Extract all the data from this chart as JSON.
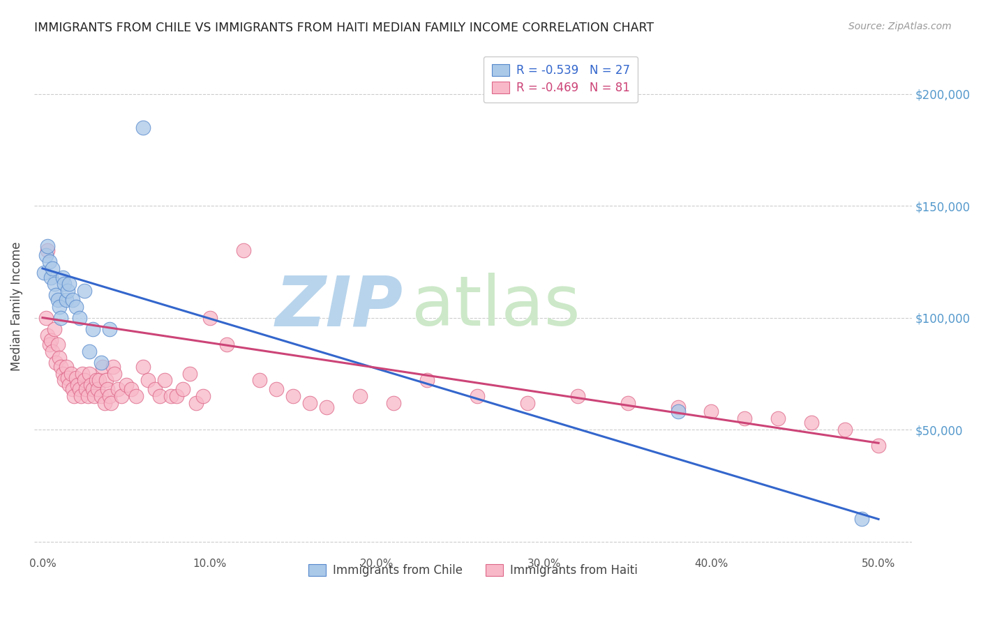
{
  "title": "IMMIGRANTS FROM CHILE VS IMMIGRANTS FROM HAITI MEDIAN FAMILY INCOME CORRELATION CHART",
  "source": "Source: ZipAtlas.com",
  "ylabel": "Median Family Income",
  "xlabel_ticks": [
    "0.0%",
    "10.0%",
    "20.0%",
    "30.0%",
    "40.0%",
    "50.0%"
  ],
  "xlabel_vals": [
    0.0,
    0.1,
    0.2,
    0.3,
    0.4,
    0.5
  ],
  "ytick_vals": [
    0,
    50000,
    100000,
    150000,
    200000
  ],
  "ytick_labels": [
    "",
    "$50,000",
    "$100,000",
    "$150,000",
    "$200,000"
  ],
  "ylim": [
    -5000,
    215000
  ],
  "xlim": [
    -0.005,
    0.52
  ],
  "background_color": "#ffffff",
  "grid_color": "#cccccc",
  "watermark_zip": "ZIP",
  "watermark_atlas": "atlas",
  "watermark_color": "#cde0f0",
  "legend_chile_label": "Immigrants from Chile",
  "legend_haiti_label": "Immigrants from Haiti",
  "R_chile": -0.539,
  "N_chile": 27,
  "R_haiti": -0.469,
  "N_haiti": 81,
  "chile_color": "#aac8e8",
  "chile_edge_color": "#5588cc",
  "chile_line_color": "#3366cc",
  "haiti_color": "#f8b8c8",
  "haiti_edge_color": "#dd6688",
  "haiti_line_color": "#cc4477",
  "chile_x": [
    0.001,
    0.002,
    0.003,
    0.004,
    0.005,
    0.006,
    0.007,
    0.008,
    0.009,
    0.01,
    0.011,
    0.012,
    0.013,
    0.014,
    0.015,
    0.016,
    0.018,
    0.02,
    0.022,
    0.025,
    0.028,
    0.03,
    0.035,
    0.04,
    0.06,
    0.38,
    0.49
  ],
  "chile_y": [
    120000,
    128000,
    132000,
    125000,
    118000,
    122000,
    115000,
    110000,
    108000,
    105000,
    100000,
    118000,
    115000,
    108000,
    112000,
    115000,
    108000,
    105000,
    100000,
    112000,
    85000,
    95000,
    80000,
    95000,
    185000,
    58000,
    10000
  ],
  "haiti_x": [
    0.002,
    0.003,
    0.004,
    0.005,
    0.006,
    0.007,
    0.008,
    0.009,
    0.01,
    0.011,
    0.012,
    0.013,
    0.014,
    0.015,
    0.016,
    0.017,
    0.018,
    0.019,
    0.02,
    0.021,
    0.022,
    0.023,
    0.024,
    0.025,
    0.026,
    0.027,
    0.028,
    0.029,
    0.03,
    0.031,
    0.032,
    0.033,
    0.034,
    0.035,
    0.036,
    0.037,
    0.038,
    0.039,
    0.04,
    0.041,
    0.042,
    0.043,
    0.045,
    0.047,
    0.05,
    0.053,
    0.056,
    0.06,
    0.063,
    0.067,
    0.07,
    0.073,
    0.077,
    0.08,
    0.084,
    0.088,
    0.092,
    0.096,
    0.1,
    0.11,
    0.12,
    0.13,
    0.14,
    0.15,
    0.16,
    0.17,
    0.19,
    0.21,
    0.23,
    0.26,
    0.29,
    0.32,
    0.35,
    0.38,
    0.4,
    0.42,
    0.44,
    0.46,
    0.48,
    0.5,
    0.003
  ],
  "haiti_y": [
    100000,
    92000,
    88000,
    90000,
    85000,
    95000,
    80000,
    88000,
    82000,
    78000,
    75000,
    72000,
    78000,
    73000,
    70000,
    75000,
    68000,
    65000,
    73000,
    70000,
    68000,
    65000,
    75000,
    72000,
    68000,
    65000,
    75000,
    70000,
    68000,
    65000,
    72000,
    68000,
    72000,
    65000,
    78000,
    62000,
    72000,
    68000,
    65000,
    62000,
    78000,
    75000,
    68000,
    65000,
    70000,
    68000,
    65000,
    78000,
    72000,
    68000,
    65000,
    72000,
    65000,
    65000,
    68000,
    75000,
    62000,
    65000,
    100000,
    88000,
    130000,
    72000,
    68000,
    65000,
    62000,
    60000,
    65000,
    62000,
    72000,
    65000,
    62000,
    65000,
    62000,
    60000,
    58000,
    55000,
    55000,
    53000,
    50000,
    43000,
    130000
  ]
}
